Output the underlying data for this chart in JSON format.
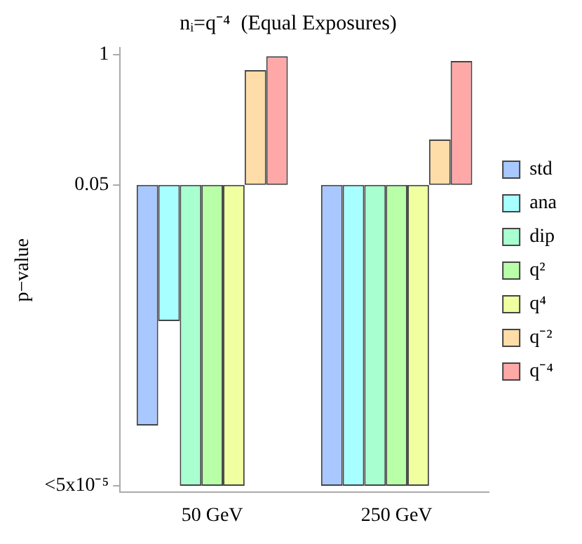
{
  "chart_data": {
    "type": "bar",
    "title": "nᵢ=q⁻⁴  (Equal Exposures)",
    "ylabel": "p−value",
    "categories": [
      "50 GeV",
      "250 GeV"
    ],
    "log": true,
    "ylim": [
      4.3e-05,
      1.17
    ],
    "yticks": [
      {
        "value": 1,
        "label": "1"
      },
      0.05,
      {
        "value": 5e-05,
        "label": "<5x10⁻⁵"
      }
    ],
    "grid": false,
    "legend": "right",
    "series": [
      {
        "name": "std",
        "color": "#a8c8ff",
        "base": [
          0.05,
          0.05
        ],
        "values": [
          -0.0498,
          -0.04995
        ]
      },
      {
        "name": "ana",
        "color": "#a8ffff",
        "base": [
          0.05,
          0.05
        ],
        "values": [
          -0.0478,
          -0.04995
        ]
      },
      {
        "name": "dip",
        "color": "#a8ffd0",
        "base": [
          0.05,
          0.05
        ],
        "values": [
          -0.04995,
          -0.04995
        ]
      },
      {
        "name": "q²",
        "color": "#b8ffa8",
        "base": [
          0.05,
          0.05
        ],
        "values": [
          -0.04995,
          -0.04995
        ]
      },
      {
        "name": "q⁴",
        "color": "#f0ffa0",
        "base": [
          0.05,
          0.05
        ],
        "values": [
          -0.04995,
          -0.04995
        ]
      },
      {
        "name": "q⁻²",
        "color": "#ffdda8",
        "base": [
          0.05,
          0.05
        ],
        "values": [
          0.65,
          0.092
        ]
      },
      {
        "name": "q⁻⁴",
        "color": "#ffa8a8",
        "base": [
          0.05,
          0.05
        ],
        "values": [
          0.91,
          0.81
        ]
      }
    ]
  }
}
